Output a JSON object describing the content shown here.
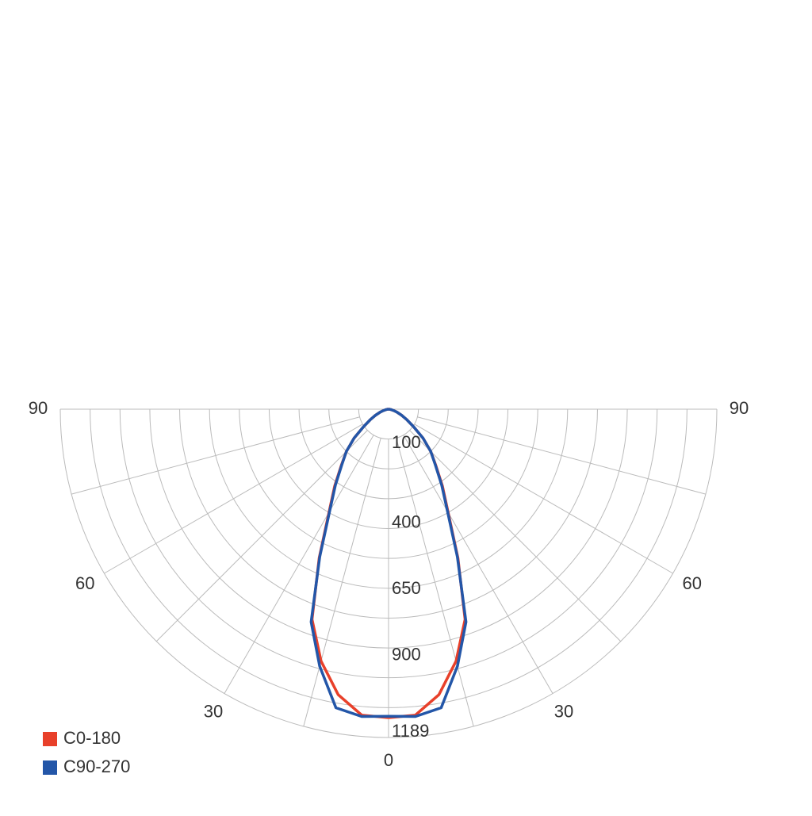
{
  "chart_data": {
    "type": "polar",
    "angles": [
      0,
      5,
      10,
      15,
      20,
      25,
      30,
      35,
      40,
      45,
      50,
      55,
      60,
      65,
      70,
      75,
      80,
      85,
      90
    ],
    "series": [
      {
        "name": "C0-180",
        "color": "#e8402a",
        "values": [
          1165,
          1160,
          1095,
          985,
          845,
          620,
          450,
          355,
          278,
          225,
          170,
          115,
          80,
          55,
          35,
          20,
          10,
          5,
          0
        ]
      },
      {
        "name": "C90-270",
        "color": "#2356a8",
        "values": [
          1160,
          1165,
          1145,
          1005,
          855,
          615,
          445,
          350,
          275,
          225,
          170,
          115,
          80,
          55,
          35,
          20,
          10,
          5,
          0
        ]
      }
    ],
    "rlim": [
      0,
      1240
    ],
    "rticks": [
      100,
      400,
      650,
      900,
      1189
    ],
    "angle_ticks": [
      0,
      30,
      60,
      90
    ],
    "legend": "bottom-left"
  }
}
